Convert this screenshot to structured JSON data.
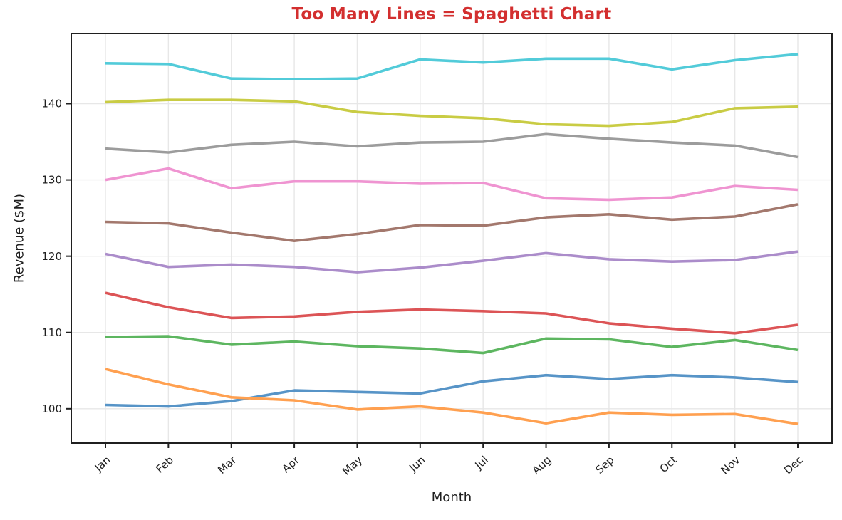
{
  "page": {
    "background": "#ffffff"
  },
  "chart_data": {
    "type": "line",
    "title": "Too Many Lines = Spaghetti Chart",
    "title_color": "#d32f2f",
    "xlabel": "Month",
    "ylabel": "Revenue ($M)",
    "categories": [
      "Jan",
      "Feb",
      "Mar",
      "Apr",
      "May",
      "Jun",
      "Jul",
      "Aug",
      "Sep",
      "Oct",
      "Nov",
      "Dec"
    ],
    "yticks": [
      100,
      110,
      120,
      130,
      140
    ],
    "ylim": [
      95.5,
      149.2
    ],
    "grid": true,
    "grid_color": "#e7e7e7",
    "axis_color": "#1f1f1f",
    "tick_label_color": "#1f1f1f",
    "x_tick_rotation_deg": 42,
    "legend": "none",
    "line_width": 3.6,
    "series": [
      {
        "name": "blue-line",
        "color": "#5794c7",
        "values": [
          100.5,
          100.3,
          101.0,
          102.4,
          102.2,
          102.0,
          103.6,
          104.4,
          103.9,
          104.4,
          104.1,
          103.5
        ]
      },
      {
        "name": "orange-line",
        "color": "#ffa050",
        "values": [
          105.2,
          103.2,
          101.5,
          101.1,
          99.9,
          100.3,
          99.5,
          98.1,
          99.5,
          99.2,
          99.3,
          98.0
        ]
      },
      {
        "name": "green-line",
        "color": "#5db660",
        "values": [
          109.4,
          109.5,
          108.4,
          108.8,
          108.2,
          107.9,
          107.3,
          109.2,
          109.1,
          108.1,
          109.0,
          107.7
        ]
      },
      {
        "name": "red-line",
        "color": "#dc5456",
        "values": [
          115.2,
          113.3,
          111.9,
          112.1,
          112.7,
          113.0,
          112.8,
          112.5,
          111.2,
          110.5,
          109.9,
          111.0
        ]
      },
      {
        "name": "purple-line",
        "color": "#ab8cca",
        "values": [
          120.3,
          118.6,
          118.9,
          118.6,
          117.9,
          118.5,
          119.4,
          120.4,
          119.6,
          119.3,
          119.5,
          120.6
        ]
      },
      {
        "name": "brown-line",
        "color": "#a3786d",
        "values": [
          124.5,
          124.3,
          123.1,
          122.0,
          122.9,
          124.1,
          124.0,
          125.1,
          125.5,
          124.8,
          125.2,
          126.8
        ]
      },
      {
        "name": "pink-line",
        "color": "#ef94d1",
        "values": [
          130.0,
          131.5,
          128.9,
          129.8,
          129.8,
          129.5,
          129.6,
          127.6,
          127.4,
          127.7,
          129.2,
          128.7
        ]
      },
      {
        "name": "gray-line",
        "color": "#9c9c9c",
        "values": [
          134.1,
          133.6,
          134.6,
          135.0,
          134.4,
          134.9,
          135.0,
          136.0,
          135.4,
          134.9,
          134.5,
          133.0
        ]
      },
      {
        "name": "olive-line",
        "color": "#c9cc44",
        "values": [
          140.2,
          140.5,
          140.5,
          140.3,
          138.9,
          138.4,
          138.1,
          137.3,
          137.1,
          137.6,
          139.4,
          139.6
        ]
      },
      {
        "name": "cyan-line",
        "color": "#52cbd9",
        "values": [
          145.3,
          145.2,
          143.3,
          143.2,
          143.3,
          145.8,
          145.4,
          145.9,
          145.9,
          144.5,
          145.7,
          146.5
        ]
      }
    ]
  }
}
